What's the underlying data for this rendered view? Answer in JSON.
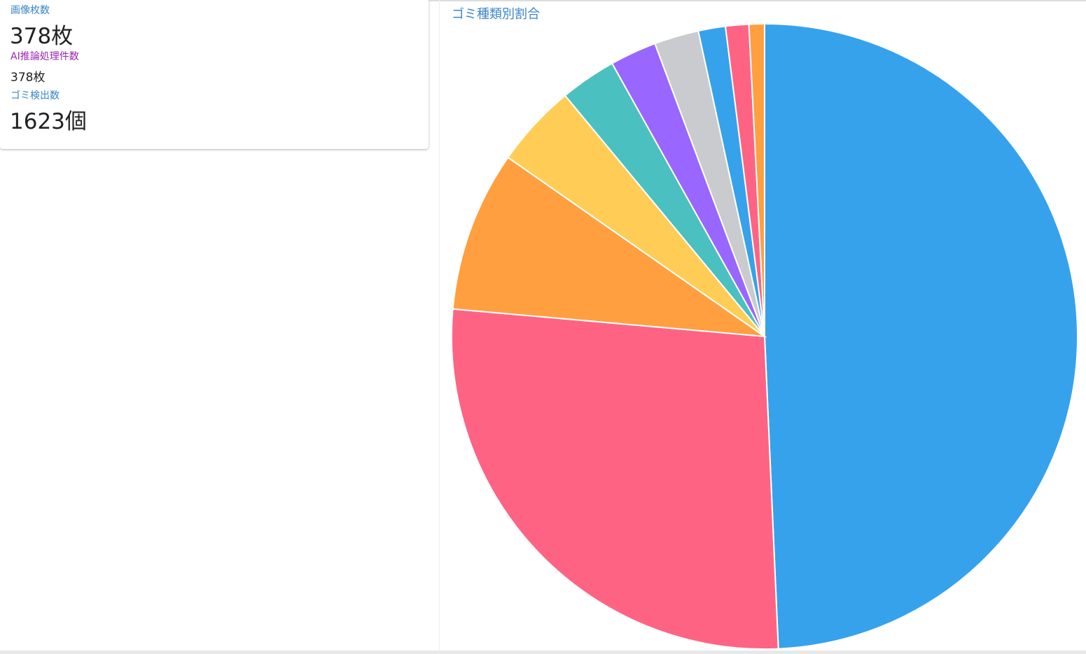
{
  "stats": [
    {
      "label": "画像枚数",
      "value": "378枚"
    },
    {
      "label": "AI推論処理件数",
      "value": "378枚"
    },
    {
      "label": "ゴミ検出数",
      "value": "1623個"
    }
  ],
  "chart_data": {
    "type": "pie",
    "title": "ゴミ種類別割合",
    "values": [
      49.3,
      27.1,
      8.3,
      4.3,
      2.9,
      2.4,
      2.3,
      1.4,
      1.2,
      0.8
    ],
    "colors": [
      "#36a2eb",
      "#ff6384",
      "#ff9f40",
      "#ffcd56",
      "#4bc0c0",
      "#9966ff",
      "#c9cbcf",
      "#36a2eb",
      "#ff6384",
      "#ff9f40"
    ]
  }
}
